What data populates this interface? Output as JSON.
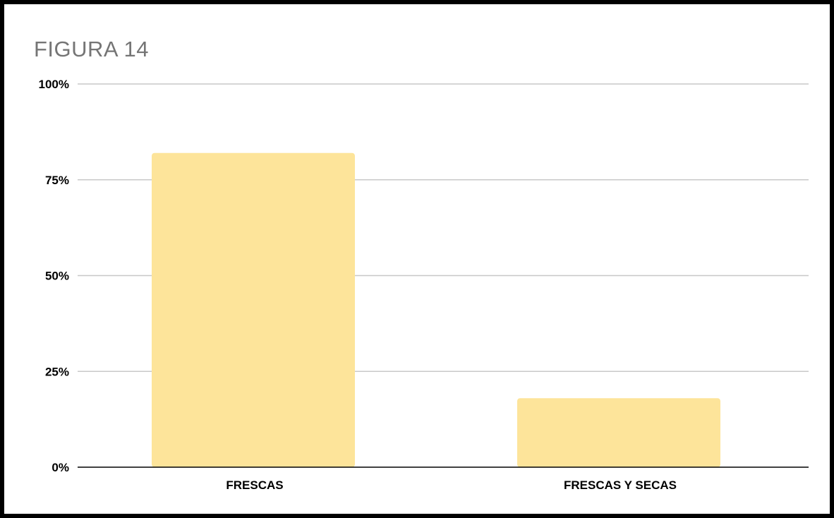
{
  "chart_data": {
    "type": "bar",
    "title": "FIGURA 14",
    "xlabel": "",
    "ylabel": "",
    "categories": [
      "FRESCAS",
      "FRESCAS Y SECAS"
    ],
    "values": [
      82,
      18
    ],
    "ylim": [
      0,
      100
    ],
    "yticks": [
      0,
      25,
      50,
      75,
      100
    ],
    "ytick_labels": [
      "0%",
      "25%",
      "50%",
      "75%",
      "100%"
    ],
    "grid": true,
    "legend": "none",
    "colors": {
      "bar": "#FDE49A",
      "grid": "#C8C8C8",
      "axis": "#000000",
      "title": "#757575",
      "frame": "#000000"
    }
  }
}
